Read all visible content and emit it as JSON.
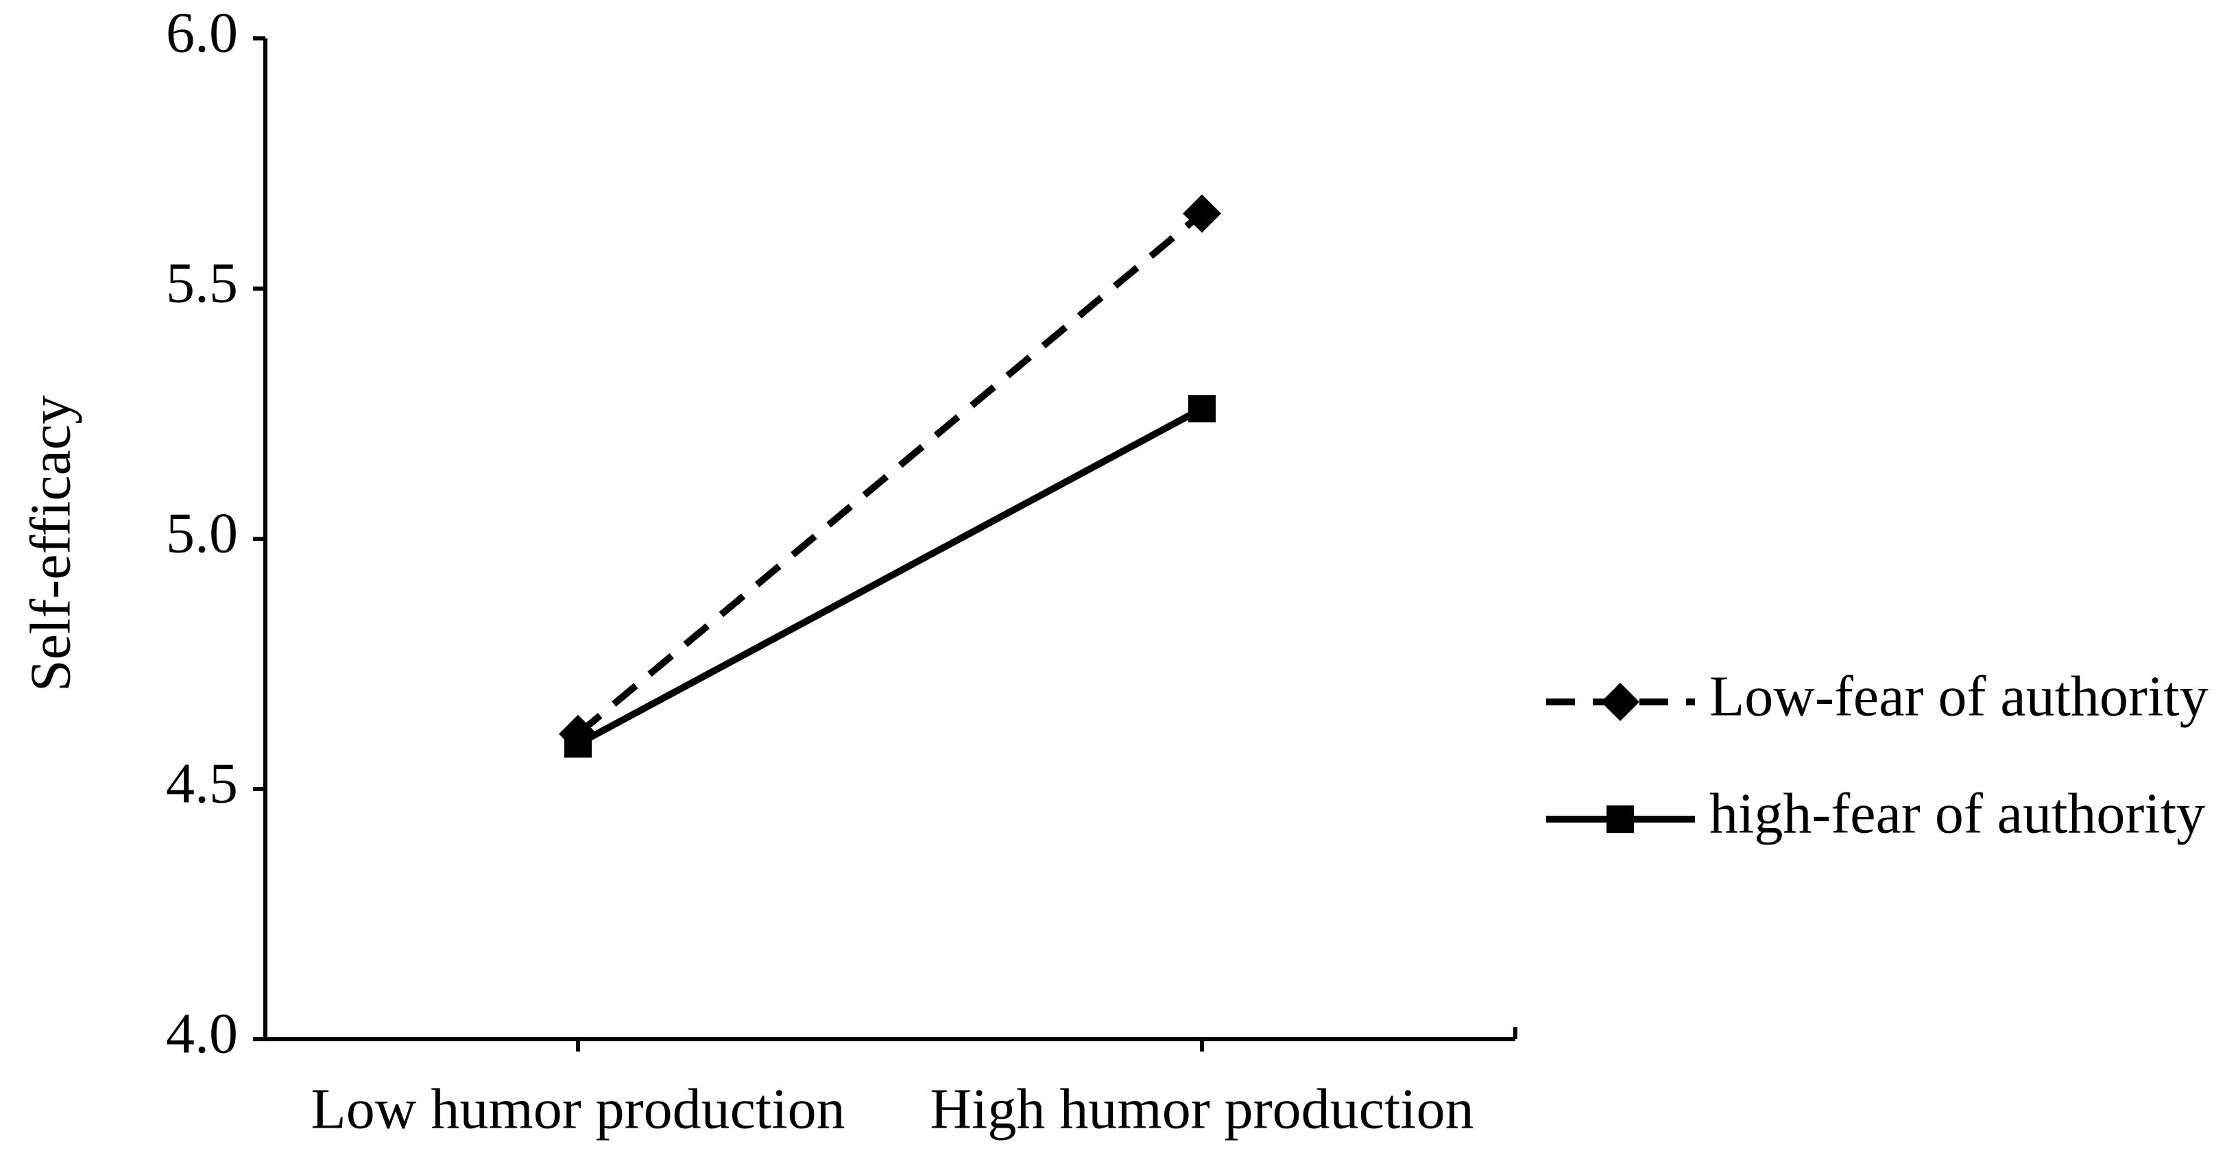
{
  "chart_data": {
    "type": "line",
    "y_label": "Self-efficacy",
    "categories": [
      "Low humor production",
      "High humor production"
    ],
    "series": [
      {
        "name": "Low-fear of authority",
        "color": "#000000",
        "marker": "diamond",
        "dashed": true,
        "values": [
          4.61,
          5.65
        ]
      },
      {
        "name": "high-fear of authority",
        "color": "#000000",
        "marker": "square",
        "dashed": false,
        "values": [
          4.59,
          5.26
        ]
      }
    ],
    "ylim": [
      4.0,
      6.0
    ],
    "yticks": [
      {
        "value": 4.0,
        "label": "4.0"
      },
      4.5,
      {
        "value": 5.0,
        "label": "5.0"
      },
      5.5,
      {
        "value": 6.0,
        "label": "6.0"
      }
    ],
    "legend": "right"
  }
}
